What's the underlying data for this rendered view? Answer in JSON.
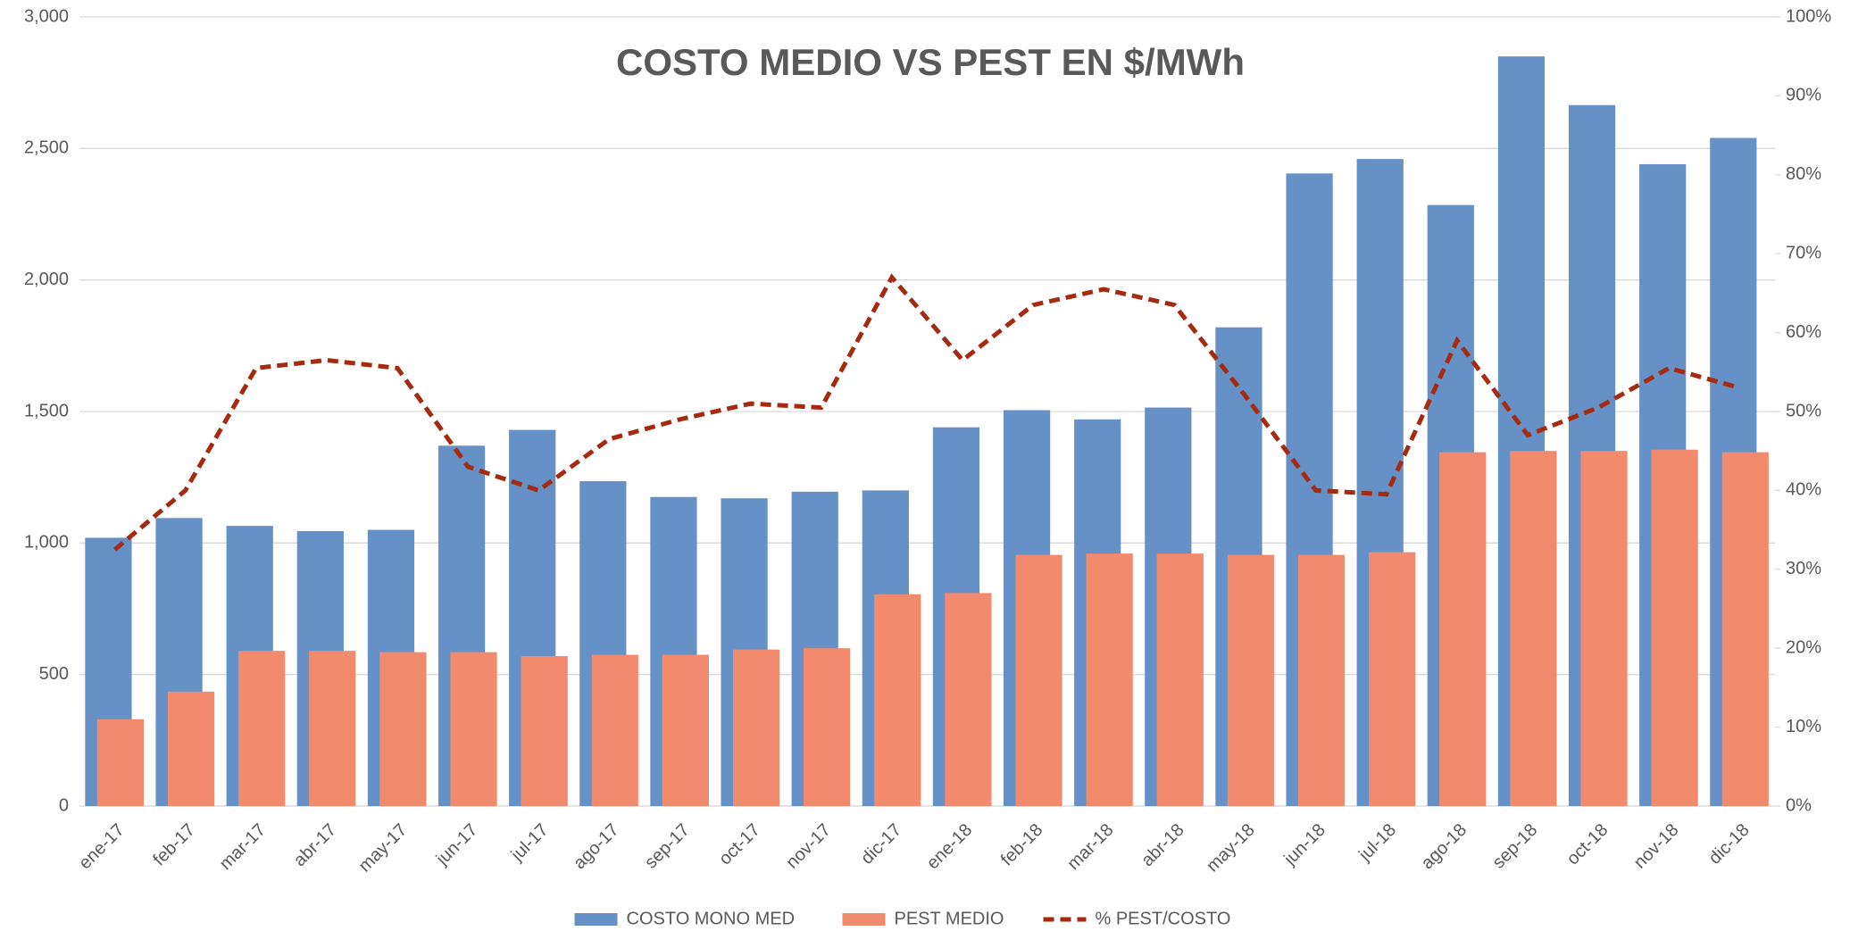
{
  "chart_data": {
    "type": "bar",
    "title": "COSTO MEDIO VS PEST EN $/MWh",
    "categories": [
      "ene-17",
      "feb-17",
      "mar-17",
      "abr-17",
      "may-17",
      "jun-17",
      "jul-17",
      "ago-17",
      "sep-17",
      "oct-17",
      "nov-17",
      "dic-17",
      "ene-18",
      "feb-18",
      "mar-18",
      "abr-18",
      "may-18",
      "jun-18",
      "jul-18",
      "ago-18",
      "sep-18",
      "oct-18",
      "nov-18",
      "dic-18"
    ],
    "series": [
      {
        "name": "COSTO MONO MED",
        "color": "#6591c7",
        "type": "bar",
        "values": [
          1020,
          1095,
          1065,
          1045,
          1050,
          1370,
          1430,
          1235,
          1175,
          1170,
          1195,
          1200,
          1440,
          1505,
          1470,
          1515,
          1820,
          2405,
          2460,
          2285,
          2850,
          2665,
          2440,
          2540
        ]
      },
      {
        "name": "PEST MEDIO",
        "color": "#f28a6e",
        "type": "bar",
        "values": [
          330,
          435,
          590,
          590,
          585,
          585,
          570,
          575,
          575,
          595,
          600,
          805,
          810,
          955,
          960,
          960,
          955,
          955,
          965,
          1345,
          1350,
          1350,
          1355,
          1345
        ]
      },
      {
        "name": "% PEST/COSTO",
        "color": "#a52a0f",
        "type": "line",
        "axis": "y2",
        "dashed": true,
        "values": [
          32.5,
          40,
          55.5,
          56.5,
          55.5,
          43,
          40,
          46.5,
          49,
          51,
          50.5,
          67,
          56.5,
          63.5,
          65.5,
          63.5,
          52,
          40,
          39.5,
          59,
          47,
          50.5,
          55.5,
          53
        ]
      }
    ],
    "ylim": [
      0,
      3000
    ],
    "yticks": [
      0,
      500,
      {
        "value": 1000,
        "label": "1,000"
      },
      {
        "value": 1500,
        "label": "1,500"
      },
      {
        "value": 2000,
        "label": "2,000"
      },
      {
        "value": 2500,
        "label": "2,500"
      },
      {
        "value": 3000,
        "label": "3,000"
      }
    ],
    "y2lim": [
      0,
      100
    ],
    "y2ticks": [
      {
        "value": 0,
        "label": "0%"
      },
      {
        "value": 10,
        "label": "10%"
      },
      {
        "value": 20,
        "label": "20%"
      },
      {
        "value": 30,
        "label": "30%"
      },
      {
        "value": 40,
        "label": "40%"
      },
      {
        "value": 50,
        "label": "50%"
      },
      {
        "value": 60,
        "label": "60%"
      },
      {
        "value": 70,
        "label": "70%"
      },
      {
        "value": 80,
        "label": "80%"
      },
      {
        "value": 90,
        "label": "90%"
      },
      {
        "value": 100,
        "label": "100%"
      }
    ],
    "grid": true,
    "legend": "bottom"
  }
}
